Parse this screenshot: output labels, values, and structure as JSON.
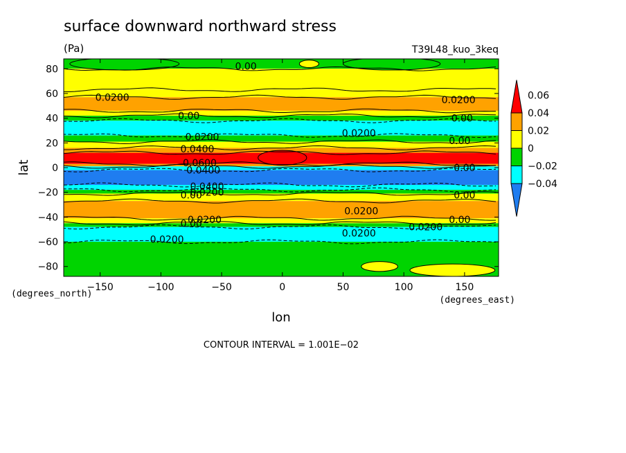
{
  "chart_data": {
    "type": "heatmap",
    "title": "surface downward northward stress",
    "units": "(Pa)",
    "dataset_label": "T39L48_kuo_3keq",
    "xlabel": "lon",
    "ylabel": "lat",
    "x_units": "(degrees_east)",
    "y_units": "(degrees_north)",
    "xlim": [
      -180,
      178
    ],
    "ylim": [
      -88,
      88
    ],
    "x_ticks": [
      -150,
      -100,
      -50,
      0,
      50,
      100,
      150
    ],
    "x_tick_labels": [
      "−150",
      "−100",
      "−50",
      "0",
      "50",
      "100",
      "150"
    ],
    "y_ticks": [
      80,
      60,
      40,
      20,
      0,
      -20,
      -40,
      -60,
      -80
    ],
    "y_tick_labels": [
      "80",
      "60",
      "40",
      "20",
      "0",
      "−20",
      "−40",
      "−60",
      "−80"
    ],
    "colorbar": {
      "levels": [
        -0.06,
        -0.04,
        -0.02,
        0,
        0.02,
        0.04,
        0.06
      ],
      "tick_labels": [
        "−0.04",
        "−0.02",
        "0",
        "0.02",
        "0.04",
        "0.06"
      ],
      "colors": [
        "#1f7df0",
        "#00ffff",
        "#00d400",
        "#ffff00",
        "#ffa200",
        "#ff0000"
      ]
    },
    "zonal_bands": [
      {
        "lat": [
          80,
          88
        ],
        "value": -0.01
      },
      {
        "lat": [
          63,
          80
        ],
        "value": 0.01
      },
      {
        "lat": [
          57,
          63
        ],
        "value": 0.015
      },
      {
        "lat": [
          46,
          57
        ],
        "value": 0.03
      },
      {
        "lat": [
          42,
          46
        ],
        "value": 0.01
      },
      {
        "lat": [
          38,
          42
        ],
        "value": -0.01
      },
      {
        "lat": [
          26,
          38
        ],
        "value": -0.03
      },
      {
        "lat": [
          21,
          26
        ],
        "value": -0.01
      },
      {
        "lat": [
          16,
          21
        ],
        "value": 0.01
      },
      {
        "lat": [
          12,
          16
        ],
        "value": 0.03
      },
      {
        "lat": [
          3,
          12
        ],
        "value": 0.05
      },
      {
        "lat": [
          1,
          3
        ],
        "value": 0.03
      },
      {
        "lat": [
          -2,
          1
        ],
        "value": -0.03
      },
      {
        "lat": [
          -14,
          -2
        ],
        "value": -0.05
      },
      {
        "lat": [
          -18,
          -14
        ],
        "value": -0.03
      },
      {
        "lat": [
          -21,
          -18
        ],
        "value": -0.01
      },
      {
        "lat": [
          -27,
          -21
        ],
        "value": 0.01
      },
      {
        "lat": [
          -41,
          -27
        ],
        "value": 0.03
      },
      {
        "lat": [
          -45,
          -41
        ],
        "value": 0.01
      },
      {
        "lat": [
          -48,
          -45
        ],
        "value": -0.01
      },
      {
        "lat": [
          -60,
          -48
        ],
        "value": -0.03
      },
      {
        "lat": [
          -88,
          -60
        ],
        "value": -0.01
      }
    ],
    "features": [
      {
        "shape": "ellipse",
        "lon": 0,
        "lat": 8,
        "r_lon": 20,
        "r_lat": 6,
        "value": 0.07
      },
      {
        "shape": "ellipse",
        "lon": 22,
        "lat": 84,
        "r_lon": 8,
        "r_lat": 3,
        "value": 0.01
      },
      {
        "shape": "ellipse",
        "lon": 140,
        "lat": -83,
        "r_lon": 35,
        "r_lat": 5,
        "value": 0.01
      },
      {
        "shape": "ellipse",
        "lon": 80,
        "lat": -80,
        "r_lon": 15,
        "r_lat": 4,
        "value": 0.01
      },
      {
        "shape": "ellipse",
        "lon": -130,
        "lat": 84,
        "r_lon": 45,
        "r_lat": 5,
        "value": -0.01
      },
      {
        "shape": "ellipse",
        "lon": 90,
        "lat": 84,
        "r_lon": 40,
        "r_lat": 5,
        "value": -0.01
      }
    ],
    "contour_labels": [
      {
        "text": "0.00",
        "lon": -30,
        "lat": 82
      },
      {
        "text": "0.0200",
        "lon": -140,
        "lat": 57
      },
      {
        "text": "0.0200",
        "lon": 145,
        "lat": 55
      },
      {
        "text": "0.00",
        "lon": -77,
        "lat": 42
      },
      {
        "text": "0.00",
        "lon": 148,
        "lat": 40
      },
      {
        "text": "0.0200",
        "lon": 63,
        "lat": 28
      },
      {
        "text": "0.0200",
        "lon": -66,
        "lat": 25
      },
      {
        "text": "0.00",
        "lon": 146,
        "lat": 22
      },
      {
        "text": "0.0400",
        "lon": -70,
        "lat": 15
      },
      {
        "text": "0.0600",
        "lon": -68,
        "lat": 4
      },
      {
        "text": "0.0400",
        "lon": -65,
        "lat": -2
      },
      {
        "text": "0.00",
        "lon": 150,
        "lat": 0
      },
      {
        "text": "0.0400",
        "lon": -62,
        "lat": -15
      },
      {
        "text": "0.0200",
        "lon": -62,
        "lat": -20
      },
      {
        "text": "0.00",
        "lon": -75,
        "lat": -22
      },
      {
        "text": "0.00",
        "lon": 150,
        "lat": -22
      },
      {
        "text": "0.0200",
        "lon": 65,
        "lat": -35
      },
      {
        "text": "0.0200",
        "lon": -64,
        "lat": -42
      },
      {
        "text": "0.00",
        "lon": -75,
        "lat": -45
      },
      {
        "text": "0.00",
        "lon": 146,
        "lat": -42
      },
      {
        "text": "0.0200",
        "lon": 63,
        "lat": -53
      },
      {
        "text": "0.0200",
        "lon": 118,
        "lat": -48
      },
      {
        "text": "0.0200",
        "lon": -95,
        "lat": -58
      }
    ]
  },
  "footer": {
    "contour_interval": "CONTOUR INTERVAL = 1.001E−02"
  }
}
